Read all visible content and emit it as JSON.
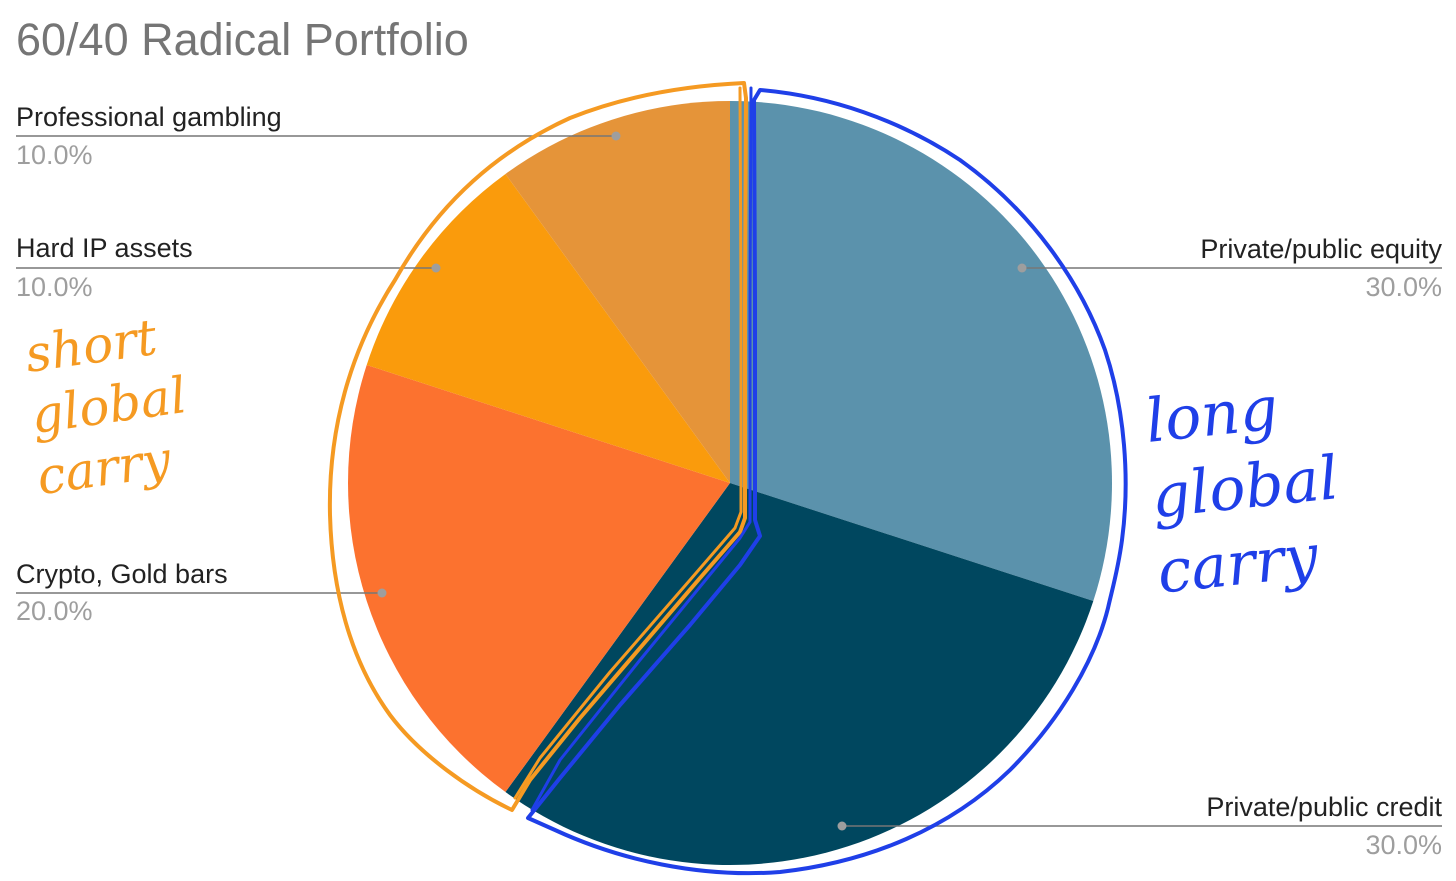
{
  "chart_data": {
    "type": "pie",
    "title": "60/40 Radical Portfolio",
    "start_angle_deg": 0,
    "direction": "clockwise",
    "slices": [
      {
        "label": "Private/public equity",
        "value": 30.0,
        "percent_label": "30.0%",
        "color": "#5b92ac",
        "label_side": "right"
      },
      {
        "label": "Private/public credit",
        "value": 30.0,
        "percent_label": "30.0%",
        "color": "#00475f",
        "label_side": "right"
      },
      {
        "label": "Crypto, Gold bars",
        "value": 20.0,
        "percent_label": "20.0%",
        "color": "#fc722f",
        "label_side": "left"
      },
      {
        "label": "Hard IP assets",
        "value": 10.0,
        "percent_label": "10.0%",
        "color": "#fa9b0c",
        "label_side": "left"
      },
      {
        "label": "Professional gambling",
        "value": 10.0,
        "percent_label": "10.0%",
        "color": "#e59439",
        "label_side": "left"
      }
    ],
    "legend": "none",
    "annotations": [
      {
        "text": "short global carry",
        "color": "#f59a22",
        "groups": [
          "Crypto, Gold bars",
          "Hard IP assets",
          "Professional gambling"
        ]
      },
      {
        "text": "long global carry",
        "color": "#1f3fe8",
        "groups": [
          "Private/public equity",
          "Private/public credit"
        ]
      }
    ]
  }
}
